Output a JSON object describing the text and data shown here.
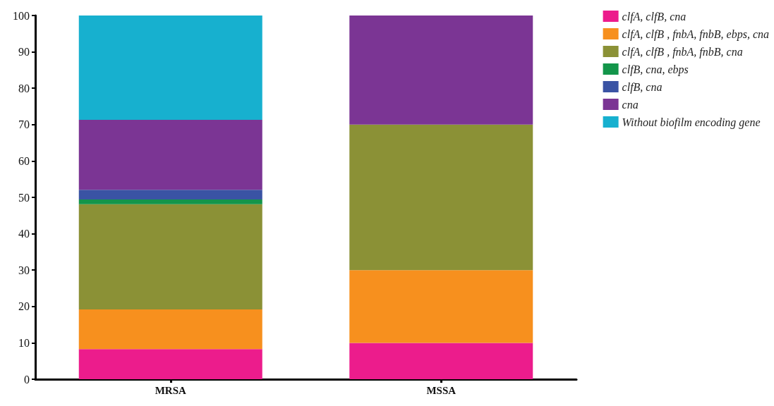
{
  "chart_data": {
    "type": "bar",
    "stacked": true,
    "categories": [
      "MRSA",
      "MSSA"
    ],
    "series": [
      {
        "name": "clfA, clfB, cna",
        "color": "#ec1c8c",
        "values": [
          8.3,
          10
        ]
      },
      {
        "name": "clfA, clfB , fnbA, fnbB, ebps, cna",
        "color": "#f7901e",
        "values": [
          10.9,
          20
        ]
      },
      {
        "name": "clfA, clfB , fnbA, fnbB, cna",
        "color": "#8b9136",
        "values": [
          28.9,
          40
        ]
      },
      {
        "name": "clfB, cna, ebps",
        "color": "#13954a",
        "values": [
          1.3,
          0
        ]
      },
      {
        "name": "clfB, cna",
        "color": "#3a53a4",
        "values": [
          2.7,
          0
        ]
      },
      {
        "name": "cna",
        "color": "#7b3594",
        "values": [
          19.2,
          30
        ]
      },
      {
        "name": "Without biofilm encoding gene",
        "color": "#17b0cf",
        "values": [
          28.7,
          0
        ]
      }
    ],
    "ylim": [
      0,
      100
    ],
    "yticks": [
      0,
      10,
      20,
      30,
      40,
      50,
      60,
      70,
      80,
      90,
      100
    ],
    "grid": false,
    "legend": "right"
  }
}
